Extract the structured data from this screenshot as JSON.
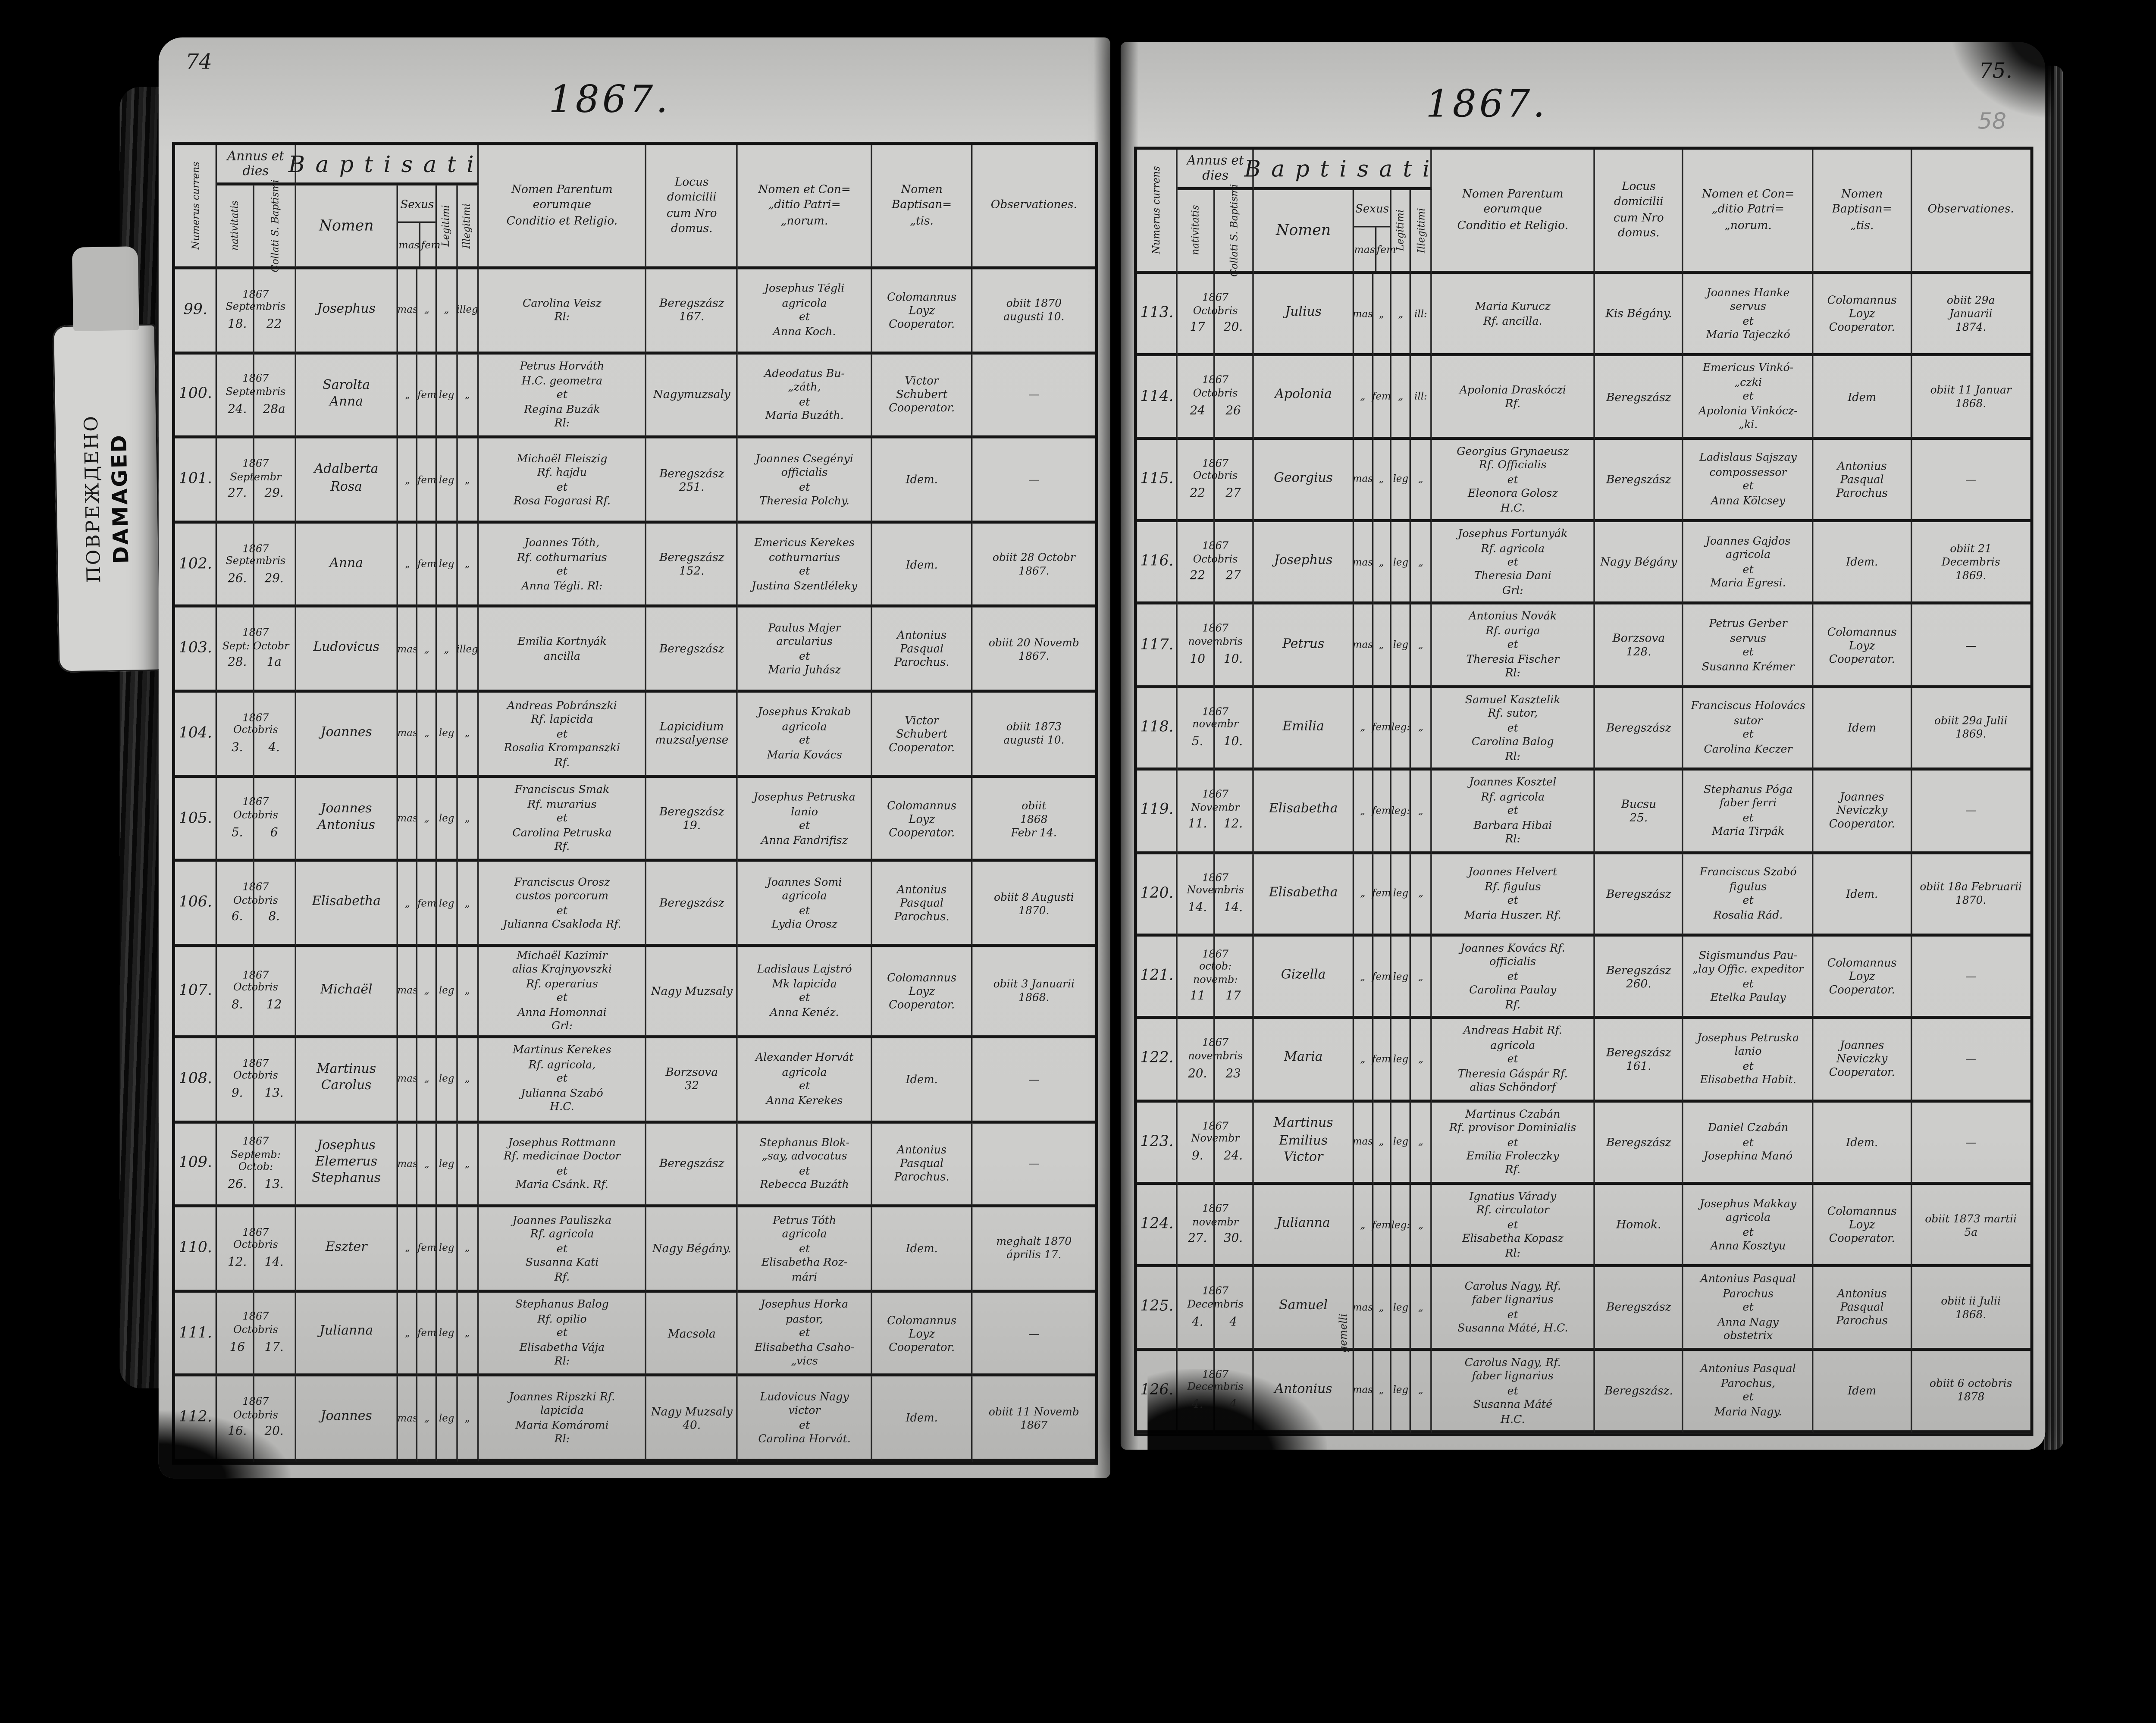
{
  "book": {
    "damaged_label": {
      "russian": "ПОВРЕЖДЕНО",
      "english": "DAMAGED"
    },
    "columns": {
      "numerus": "Numerus currens",
      "annus": "Annus et dies",
      "nativitatis": "nativitatis",
      "baptismi": "Collati S. Baptismi",
      "baptisati": "Baptisati",
      "nomen": "Nomen",
      "sexus": "Sexus",
      "mas": "mas",
      "fem": "fem",
      "legitimi": "Legitimi",
      "illegitimi": "Illegitimi",
      "parentes": "Nomen Parentum\neorumque\nConditio et Religio.",
      "locus": "Locus\ndomicilii\ncum Nro\ndomus.",
      "patrini": "Nomen et Con=\n„ditio Patri=\n„norum.",
      "baptisans": "Nomen\nBaptisan=\n„tis.",
      "observationes": "Observationes."
    },
    "pages": [
      {
        "page_number": "74",
        "year": "1867.",
        "rows": [
          {
            "num": "99.",
            "year": "1867",
            "month": "Septembris",
            "nat_day": "18.",
            "bapt_day": "22",
            "name": "Josephus",
            "name_note": "",
            "mas": "mas",
            "fem": "„",
            "leg": "„",
            "illeg": "illeg",
            "parents": "Carolina Veisz\nRl:",
            "locus": "Beregszász\n167.",
            "patrini": "Josephus Tégli\nagricola\net\nAnna Koch.",
            "baptisans": "Colomannus\nLoyz\nCooperator.",
            "obs": "obiit 1870\naugusti 10."
          },
          {
            "num": "100.",
            "year": "1867",
            "month": "Septembris",
            "nat_day": "24.",
            "bapt_day": "28a",
            "name": "Sarolta\nAnna",
            "name_note": "",
            "mas": "„",
            "fem": "fem",
            "leg": "leg",
            "illeg": "„",
            "parents": "Petrus Horváth\nH.C. geometra\net\nRegina Buzák\nRl:",
            "locus": "Nagymuzsaly",
            "patrini": "Adeodatus Bu-\n„záth,\net\nMaria Buzáth.",
            "baptisans": "Victor\nSchubert\nCooperator.",
            "obs": "—"
          },
          {
            "num": "101.",
            "year": "1867",
            "month": "Septembr",
            "nat_day": "27.",
            "bapt_day": "29.",
            "name": "Adalberta\nRosa",
            "name_note": "",
            "mas": "„",
            "fem": "fem",
            "leg": "leg",
            "illeg": "„",
            "parents": "Michaël Fleiszig\nRf. hajdu\net\nRosa Fogarasi Rf.",
            "locus": "Beregszász\n251.",
            "patrini": "Joannes Csegényi\nofficialis\net\nTheresia Polchy.",
            "baptisans": "Idem.",
            "obs": "—"
          },
          {
            "num": "102.",
            "year": "1867",
            "month": "Septembris",
            "nat_day": "26.",
            "bapt_day": "29.",
            "name": "Anna",
            "name_note": "",
            "mas": "„",
            "fem": "fem",
            "leg": "leg",
            "illeg": "„",
            "parents": "Joannes Tóth,\nRf. cothurnarius\net\nAnna Tégli. Rl:",
            "locus": "Beregszász\n152.",
            "patrini": "Emericus Kerekes\ncothurnarius\net\nJustina Szentléleky",
            "baptisans": "Idem.",
            "obs": "obiit 28 Octobr\n1867."
          },
          {
            "num": "103.",
            "year": "1867",
            "month": "Sept: Octobr",
            "nat_day": "28.",
            "bapt_day": "1a",
            "name": "Ludovicus",
            "name_note": "",
            "mas": "mas",
            "fem": "„",
            "leg": "„",
            "illeg": "illeg",
            "parents": "Emilia Kortnyák\nancilla",
            "locus": "Beregszász",
            "patrini": "Paulus Majer\narcularius\net\nMaria Juhász",
            "baptisans": "Antonius\nPasqual\nParochus.",
            "obs": "obiit 20 Novemb\n1867."
          },
          {
            "num": "104.",
            "year": "1867",
            "month": "Octobris",
            "nat_day": "3.",
            "bapt_day": "4.",
            "name": "Joannes",
            "name_note": "",
            "mas": "mas",
            "fem": "„",
            "leg": "leg",
            "illeg": "„",
            "parents": "Andreas Pobránszki\nRf. lapicida\net\nRosalia Krompanszki\nRf.",
            "locus": "Lapicidium\nmuzsalyense",
            "patrini": "Josephus Krakab\nagricola\net\nMaria Kovács",
            "baptisans": "Victor\nSchubert\nCooperator.",
            "obs": "obiit 1873\naugusti 10."
          },
          {
            "num": "105.",
            "year": "1867",
            "month": "Octobris",
            "nat_day": "5.",
            "bapt_day": "6",
            "name": "Joannes\nAntonius",
            "name_note": "",
            "mas": "mas",
            "fem": "„",
            "leg": "leg",
            "illeg": "„",
            "parents": "Franciscus Smak\nRf. murarius\net\nCarolina Petruska\nRf.",
            "locus": "Beregszász\n19.",
            "patrini": "Josephus Petruska\nlanio\net\nAnna Fandrifisz",
            "baptisans": "Colomannus\nLoyz\nCooperator.",
            "obs": "obiit\n1868\nFebr 14."
          },
          {
            "num": "106.",
            "year": "1867",
            "month": "Octobris",
            "nat_day": "6.",
            "bapt_day": "8.",
            "name": "Elisabetha",
            "name_note": "",
            "mas": "„",
            "fem": "fem",
            "leg": "leg",
            "illeg": "„",
            "parents": "Franciscus Orosz\ncustos porcorum\net\nJulianna Csakloda Rf.",
            "locus": "Beregszász",
            "patrini": "Joannes Somi\nagricola\net\nLydia Orosz",
            "baptisans": "Antonius\nPasqual\nParochus.",
            "obs": "obiit 8 Augusti\n1870."
          },
          {
            "num": "107.",
            "year": "1867",
            "month": "Octobris",
            "nat_day": "8.",
            "bapt_day": "12",
            "name": "Michaël",
            "name_note": "",
            "mas": "mas",
            "fem": "„",
            "leg": "leg",
            "illeg": "„",
            "parents": "Michaël Kazimir\nalias Krajnyovszki\nRf. operarius\net\nAnna Homonnai\nGrl:",
            "locus": "Nagy Muzsaly",
            "patrini": "Ladislaus Lajstró\nMk lapicida\net\nAnna Kenéz.",
            "baptisans": "Colomannus\nLoyz\nCooperator.",
            "obs": "obiit 3 Januarii\n1868."
          },
          {
            "num": "108.",
            "year": "1867",
            "month": "Octobris",
            "nat_day": "9.",
            "bapt_day": "13.",
            "name": "Martinus\nCarolus",
            "name_note": "",
            "mas": "mas",
            "fem": "„",
            "leg": "leg",
            "illeg": "„",
            "parents": "Martinus Kerekes\nRf. agricola,\net\nJulianna Szabó\nH.C.",
            "locus": "Borzsova\n32",
            "patrini": "Alexander Horvát\nagricola\net\nAnna Kerekes",
            "baptisans": "Idem.",
            "obs": "—"
          },
          {
            "num": "109.",
            "year": "1867",
            "month": "Septemb: Octob:",
            "nat_day": "26.",
            "bapt_day": "13.",
            "name": "Josephus\nElemerus\nStephanus",
            "name_note": "",
            "mas": "mas",
            "fem": "„",
            "leg": "leg",
            "illeg": "„",
            "parents": "Josephus Rottmann\nRf. medicinae Doctor\net\nMaria Csánk. Rf.",
            "locus": "Beregszász",
            "patrini": "Stephanus Blok-\n„say, advocatus\net\nRebecca Buzáth",
            "baptisans": "Antonius\nPasqual\nParochus.",
            "obs": "—"
          },
          {
            "num": "110.",
            "year": "1867",
            "month": "Octobris",
            "nat_day": "12.",
            "bapt_day": "14.",
            "name": "Eszter",
            "name_note": "",
            "mas": "„",
            "fem": "fem",
            "leg": "leg",
            "illeg": "„",
            "parents": "Joannes Pauliszka\nRf. agricola\net\nSusanna Kati\nRf.",
            "locus": "Nagy Bégány.",
            "patrini": "Petrus Tóth\nagricola\net\nElisabetha Roz-\nmári",
            "baptisans": "Idem.",
            "obs": "meghalt 1870\náprilis 17."
          },
          {
            "num": "111.",
            "year": "1867",
            "month": "Octobris",
            "nat_day": "16",
            "bapt_day": "17.",
            "name": "Julianna",
            "name_note": "",
            "mas": "„",
            "fem": "fem",
            "leg": "leg",
            "illeg": "„",
            "parents": "Stephanus Balog\nRf. opilio\net\nElisabetha Vája\nRl:",
            "locus": "Macsola",
            "patrini": "Josephus Horka\npastor,\net\nElisabetha Csaho-\n„vics",
            "baptisans": "Colomannus\nLoyz\nCooperator.",
            "obs": "—"
          },
          {
            "num": "112.",
            "year": "1867",
            "month": "Octobris",
            "nat_day": "16.",
            "bapt_day": "20.",
            "name": "Joannes",
            "name_note": "",
            "mas": "mas",
            "fem": "„",
            "leg": "leg",
            "illeg": "„",
            "parents": "Joannes Ripszki Rf.\nlapicida\nMaria Komáromi\nRl:",
            "locus": "Nagy Muzsaly\n40.",
            "patrini": "Ludovicus Nagy\nvictor\net\nCarolina Horvát.",
            "baptisans": "Idem.",
            "obs": "obiit 11 Novemb\n1867"
          }
        ]
      },
      {
        "page_number": "75.",
        "pencil_number": "58",
        "year": "1867.",
        "rows": [
          {
            "num": "113.",
            "year": "1867",
            "month": "Octobris",
            "nat_day": "17",
            "bapt_day": "20.",
            "name": "Julius",
            "name_note": "",
            "mas": "mas",
            "fem": "„",
            "leg": "„",
            "illeg": "ill:",
            "parents": "Maria Kurucz\nRf. ancilla.",
            "locus": "Kis Bégány.",
            "patrini": "Joannes Hanke\nservus\net\nMaria Tajeczkó",
            "baptisans": "Colomannus\nLoyz\nCooperator.",
            "obs": "obiit 29a\nJanuarii\n1874."
          },
          {
            "num": "114.",
            "year": "1867",
            "month": "Octobris",
            "nat_day": "24",
            "bapt_day": "26",
            "name": "Apolonia",
            "name_note": "",
            "mas": "„",
            "fem": "fem",
            "leg": "„",
            "illeg": "ill:",
            "parents": "Apolonia Draskóczi\nRf.",
            "locus": "Beregszász",
            "patrini": "Emericus Vinkó-\n„czki\net\nApolonia Vinkócz-\n„ki.",
            "baptisans": "Idem",
            "obs": "obiit 11 Januar\n1868."
          },
          {
            "num": "115.",
            "year": "1867",
            "month": "Octobris",
            "nat_day": "22",
            "bapt_day": "27",
            "name": "Georgius",
            "name_note": "",
            "mas": "mas",
            "fem": "„",
            "leg": "leg",
            "illeg": "„",
            "parents": "Georgius Grynaeusz\nRf. Officialis\net\nEleonora Golosz\nH.C.",
            "locus": "Beregszász",
            "patrini": "Ladislaus Sajszay\ncompossessor\net\nAnna Kölcsey",
            "baptisans": "Antonius\nPasqual\nParochus",
            "obs": "—"
          },
          {
            "num": "116.",
            "year": "1867",
            "month": "Octobris",
            "nat_day": "22",
            "bapt_day": "27",
            "name": "Josephus",
            "name_note": "",
            "mas": "mas",
            "fem": "„",
            "leg": "leg",
            "illeg": "„",
            "parents": "Josephus Fortunyák\nRf. agricola\net\nTheresia Dani\nGrl:",
            "locus": "Nagy Bégány",
            "patrini": "Joannes Gajdos\nagricola\net\nMaria Egresi.",
            "baptisans": "Idem.",
            "obs": "obiit 21\nDecembris\n1869."
          },
          {
            "num": "117.",
            "year": "1867",
            "month": "novembris",
            "nat_day": "10",
            "bapt_day": "10.",
            "name": "Petrus",
            "name_note": "",
            "mas": "mas",
            "fem": "„",
            "leg": "leg",
            "illeg": "„",
            "parents": "Antonius Novák\nRf. auriga\net\nTheresia Fischer\nRl:",
            "locus": "Borzsova\n128.",
            "patrini": "Petrus Gerber\nservus\net\nSusanna Krémer",
            "baptisans": "Colomannus\nLoyz\nCooperator.",
            "obs": "—"
          },
          {
            "num": "118.",
            "year": "1867",
            "month": "novembr",
            "nat_day": "5.",
            "bapt_day": "10.",
            "name": "Emilia",
            "name_note": "",
            "mas": "„",
            "fem": "fem",
            "leg": "leg:",
            "illeg": "„",
            "parents": "Samuel Kasztelik\nRf. sutor,\net\nCarolina Balog\nRl:",
            "locus": "Beregszász",
            "patrini": "Franciscus Holovács\nsutor\net\nCarolina Keczer",
            "baptisans": "Idem",
            "obs": "obiit 29a Julii\n1869."
          },
          {
            "num": "119.",
            "year": "1867",
            "month": "Novembr",
            "nat_day": "11.",
            "bapt_day": "12.",
            "name": "Elisabetha",
            "name_note": "",
            "mas": "„",
            "fem": "fem",
            "leg": "leg:",
            "illeg": "„",
            "parents": "Joannes Kosztel\nRf. agricola\net\nBarbara Hibai\nRl:",
            "locus": "Bucsu\n25.",
            "patrini": "Stephanus Póga\nfaber ferri\net\nMaria Tirpák",
            "baptisans": "Joannes\nNeviczky\nCooperator.",
            "obs": "—"
          },
          {
            "num": "120.",
            "year": "1867",
            "month": "Novembris",
            "nat_day": "14.",
            "bapt_day": "14.",
            "name": "Elisabetha",
            "name_note": "",
            "mas": "„",
            "fem": "fem",
            "leg": "leg",
            "illeg": "„",
            "parents": "Joannes Helvert\nRf. figulus\net\nMaria Huszer. Rf.",
            "locus": "Beregszász",
            "patrini": "Franciscus Szabó\nfigulus\net\nRosalia Rád.",
            "baptisans": "Idem.",
            "obs": "obiit 18a Februarii\n1870."
          },
          {
            "num": "121.",
            "year": "1867",
            "month": "octob: novemb:",
            "nat_day": "11",
            "bapt_day": "17",
            "name": "Gizella",
            "name_note": "",
            "mas": "„",
            "fem": "fem",
            "leg": "leg",
            "illeg": "„",
            "parents": "Joannes Kovács Rf.\nofficialis\net\nCarolina Paulay\nRf.",
            "locus": "Beregszász\n260.",
            "patrini": "Sigismundus Pau-\n„lay Offic. expeditor\net\nEtelka Paulay",
            "baptisans": "Colomannus\nLoyz\nCooperator.",
            "obs": "—"
          },
          {
            "num": "122.",
            "year": "1867",
            "month": "novembris",
            "nat_day": "20.",
            "bapt_day": "23",
            "name": "Maria",
            "name_note": "",
            "mas": "„",
            "fem": "fem",
            "leg": "leg",
            "illeg": "„",
            "parents": "Andreas Habit Rf.\nagricola\net\nTheresia Gáspár Rf.\nalias Schöndorf",
            "locus": "Beregszász\n161.",
            "patrini": "Josephus Petruska\nlanio\net\nElisabetha Habit.",
            "baptisans": "Joannes\nNeviczky\nCooperator.",
            "obs": "—"
          },
          {
            "num": "123.",
            "year": "1867",
            "month": "Novembr",
            "nat_day": "9.",
            "bapt_day": "24.",
            "name": "Martinus\nEmilius\nVictor",
            "name_note": "",
            "mas": "mas",
            "fem": "„",
            "leg": "leg",
            "illeg": "„",
            "parents": "Martinus Czabán\nRf. provisor Dominialis\net\nEmilia Froleczky\nRf.",
            "locus": "Beregszász",
            "patrini": "Daniel Czabán\net\nJosephina Manó",
            "baptisans": "Idem.",
            "obs": "—"
          },
          {
            "num": "124.",
            "year": "1867",
            "month": "novembr",
            "nat_day": "27.",
            "bapt_day": "30.",
            "name": "Julianna",
            "name_note": "",
            "mas": "„",
            "fem": "fem",
            "leg": "leg:",
            "illeg": "„",
            "parents": "Ignatius Várady\nRf. circulator\net\nElisabetha Kopasz\nRl:",
            "locus": "Homok.",
            "patrini": "Josephus Makkay\nagricola\net\nAnna Kosztyu",
            "baptisans": "Colomannus\nLoyz\nCooperator.",
            "obs": "obiit 1873 martii\n5a"
          },
          {
            "num": "125.",
            "year": "1867",
            "month": "Decembris",
            "nat_day": "4.",
            "bapt_day": "4",
            "name": "Samuel",
            "name_note": "gemelli",
            "mas": "mas",
            "fem": "„",
            "leg": "leg",
            "illeg": "„",
            "parents": "Carolus Nagy, Rf.\nfaber lignarius\net\nSusanna Máté, H.C.",
            "locus": "Beregszász",
            "patrini": "Antonius Pasqual\nParochus\net\nAnna Nagy\nobstetrix",
            "baptisans": "Antonius\nPasqual\nParochus",
            "obs": "obiit ii Julii\n1868."
          },
          {
            "num": "126.",
            "year": "1867",
            "month": "Decembris",
            "nat_day": "4.",
            "bapt_day": "4",
            "name": "Antonius",
            "name_note": "",
            "mas": "mas",
            "fem": "„",
            "leg": "leg",
            "illeg": "„",
            "parents": "Carolus Nagy, Rf.\nfaber lignarius\net\nSusanna Máté\nH.C.",
            "locus": "Beregszász.",
            "patrini": "Antonius Pasqual\nParochus,\net\nMaria Nagy.",
            "baptisans": "Idem",
            "obs": "obiit 6 octobris\n1878"
          }
        ]
      }
    ]
  }
}
